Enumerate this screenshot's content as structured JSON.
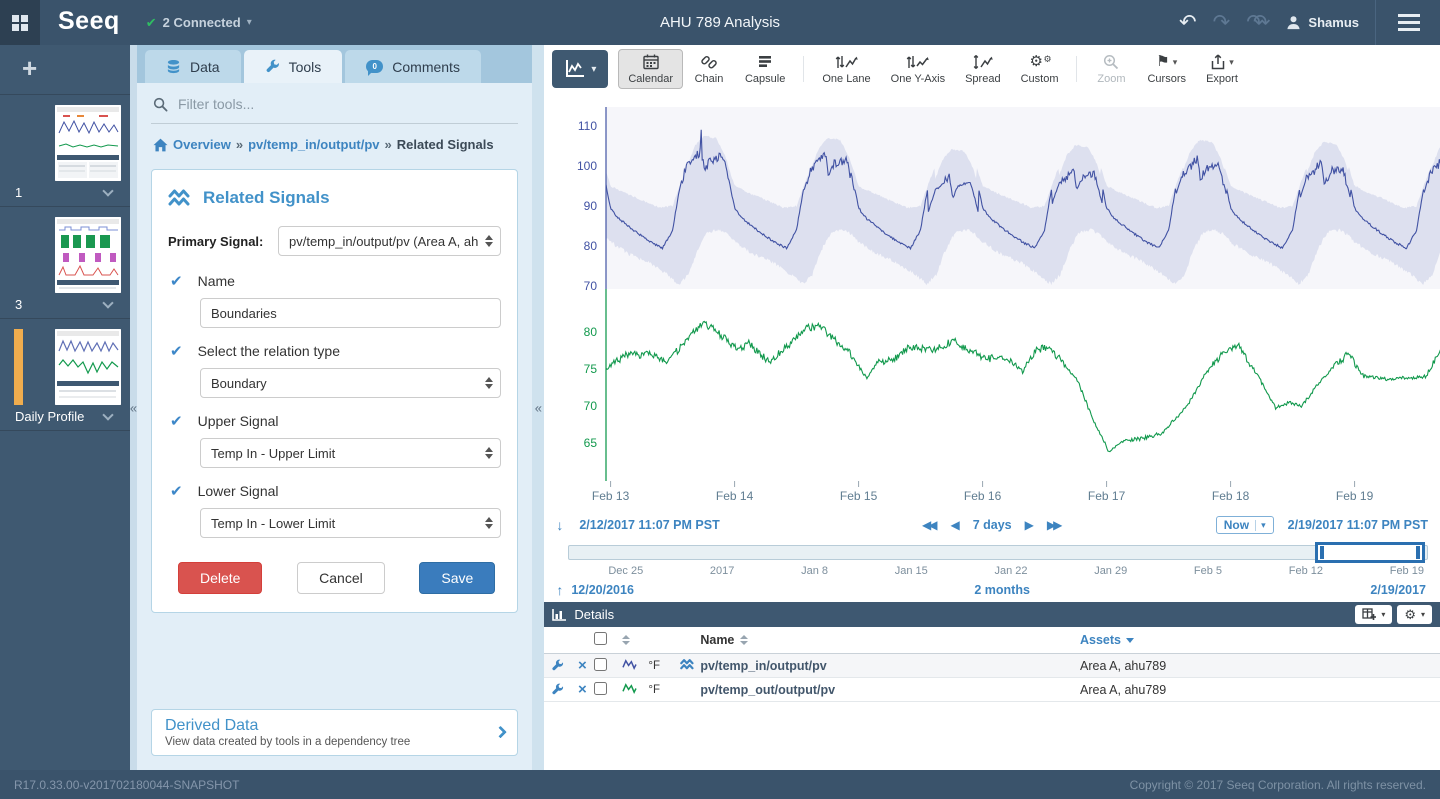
{
  "topbar": {
    "logo": "Seeq",
    "connected": "2 Connected",
    "title": "AHU 789 Analysis",
    "user": "Shamus"
  },
  "worksheets": {
    "items": [
      {
        "label": "1"
      },
      {
        "label": "3"
      },
      {
        "label": "Daily Profile"
      }
    ]
  },
  "panel": {
    "tabs": {
      "data": "Data",
      "tools": "Tools",
      "comments": "Comments",
      "comments_badge": "0"
    },
    "filter_placeholder": "Filter tools...",
    "breadcrumb": {
      "home": "Overview",
      "signal": "pv/temp_in/output/pv",
      "current": "Related Signals",
      "sep": "»"
    },
    "form": {
      "title": "Related Signals",
      "primary_label": "Primary Signal:",
      "primary_value": "pv/temp_in/output/pv (Area A, ah",
      "name_label": "Name",
      "name_value": "Boundaries",
      "relation_label": "Select the relation type",
      "relation_value": "Boundary",
      "upper_label": "Upper Signal",
      "upper_value": "Temp In - Upper Limit",
      "lower_label": "Lower Signal",
      "lower_value": "Temp In - Lower Limit",
      "delete_label": "Delete",
      "cancel_label": "Cancel",
      "save_label": "Save"
    },
    "derived": {
      "title": "Derived Data",
      "subtitle": "View data created by tools in a dependency tree"
    }
  },
  "toolbar": {
    "buttons": [
      {
        "label": "Calendar"
      },
      {
        "label": "Chain"
      },
      {
        "label": "Capsule"
      },
      {
        "label": "One Lane"
      },
      {
        "label": "One Y-Axis"
      },
      {
        "label": "Spread"
      },
      {
        "label": "Custom"
      },
      {
        "label": "Zoom"
      },
      {
        "label": "Cursors"
      },
      {
        "label": "Export"
      }
    ]
  },
  "range": {
    "start": "2/12/2017 11:07 PM PST",
    "duration": "7 days",
    "now": "Now",
    "end": "2/19/2017 11:07 PM PST"
  },
  "scrubber": {
    "ticks": [
      "Dec 25",
      "2017",
      "Jan 8",
      "Jan 15",
      "Jan 22",
      "Jan 29",
      "Feb 5",
      "Feb 12",
      "Feb 19"
    ],
    "start": "12/20/2016",
    "duration": "2 months",
    "end": "2/19/2017"
  },
  "details": {
    "title": "Details",
    "name_col": "Name",
    "assets_col": "Assets",
    "rows": [
      {
        "unit": "°F",
        "name": "pv/temp_in/output/pv",
        "assets": "Area A, ahu789",
        "color": "#4152a3",
        "related": true
      },
      {
        "unit": "°F",
        "name": "pv/temp_out/output/pv",
        "assets": "Area A, ahu789",
        "color": "#12994d",
        "related": false
      }
    ]
  },
  "footer": {
    "version": "R17.0.33.00-v201702180044-SNAPSHOT",
    "copyright": "Copyright © 2017 Seeq Corporation. All rights reserved."
  },
  "icons": {
    "check": "✔",
    "caret_down": "▾",
    "undo": "↶",
    "redo": "↷",
    "redo_all": "↷↷",
    "collapse": "«",
    "down_arrow": "↓",
    "up_arrow": "↑",
    "step_back": "◀◀",
    "back": "◀",
    "fwd": "▶",
    "step_fwd": "▶▶",
    "gear": "⚙",
    "flag": "⚑",
    "remove": "×",
    "plus": "+"
  },
  "colors": {
    "accent": "#4292c9",
    "link": "#3d84c0",
    "temp_in_line": "#4152a3",
    "temp_out_line": "#12994d",
    "band_fill": "#c9cee6",
    "lane1_bg": "#f6f6fa",
    "save_button": "#3a7cbd",
    "delete_button": "#d9534f",
    "active_worksheet_bar": "#f0ad4e"
  },
  "chart_data": {
    "type": "line",
    "x_ticks": [
      "Feb 13",
      "Feb 14",
      "Feb 15",
      "Feb 16",
      "Feb 17",
      "Feb 18",
      "Feb 19"
    ],
    "x_range_label": [
      "2/12/2017 11:07 PM PST",
      "2/19/2017 11:07 PM PST"
    ],
    "grid": false,
    "lanes": [
      {
        "signal": "pv/temp_in/output/pv",
        "unit": "°F",
        "color": "#4152a3",
        "y_ticks": [
          110,
          100,
          90,
          80,
          70
        ],
        "ylim": [
          66,
          115
        ],
        "band": {
          "upper": "Temp In - Upper Limit",
          "lower": "Temp In - Lower Limit",
          "fill": "#c9cee6"
        }
      },
      {
        "signal": "pv/temp_out/output/pv",
        "unit": "°F",
        "color": "#12994d",
        "y_ticks": [
          80,
          75,
          70,
          65
        ],
        "ylim": [
          60,
          84
        ]
      }
    ],
    "temp_in_daily_profile": [
      [
        0,
        89.5
      ],
      [
        0.06,
        87
      ],
      [
        0.18,
        84
      ],
      [
        0.32,
        81
      ],
      [
        0.42,
        79.5
      ],
      [
        0.5,
        84
      ],
      [
        0.56,
        95
      ],
      [
        0.62,
        100.5
      ],
      [
        0.68,
        102
      ],
      [
        0.73,
        104
      ],
      [
        0.76,
        98.5
      ],
      [
        0.8,
        101.5
      ],
      [
        0.9,
        102.5
      ],
      [
        0.95,
        97
      ],
      [
        1,
        89.5
      ]
    ],
    "upper_limit_daily_profile": [
      [
        0,
        95
      ],
      [
        0.1,
        93.5
      ],
      [
        0.25,
        91.5
      ],
      [
        0.4,
        89.5
      ],
      [
        0.5,
        90
      ],
      [
        0.58,
        97
      ],
      [
        0.68,
        105
      ],
      [
        0.75,
        107.5
      ],
      [
        0.85,
        107
      ],
      [
        0.92,
        103
      ],
      [
        1,
        95
      ]
    ],
    "lower_limit_daily_profile": [
      [
        0,
        81
      ],
      [
        0.15,
        78
      ],
      [
        0.3,
        76
      ],
      [
        0.45,
        73
      ],
      [
        0.55,
        70.5
      ],
      [
        0.63,
        73
      ],
      [
        0.7,
        79
      ],
      [
        0.78,
        83.5
      ],
      [
        0.88,
        84
      ],
      [
        0.94,
        83
      ],
      [
        1,
        81
      ]
    ],
    "day_peak_offsets": [
      0,
      0,
      -1,
      -6.5,
      -4.5,
      -2,
      -3,
      -1.5
    ],
    "temp_in_spike": {
      "day": 1,
      "phase": 0.73,
      "amplitude": 5.5
    },
    "temp_out_points": [
      [
        0,
        75
      ],
      [
        0.15,
        76.8
      ],
      [
        0.35,
        77
      ],
      [
        0.47,
        76
      ],
      [
        0.58,
        77.5
      ],
      [
        0.71,
        80
      ],
      [
        0.79,
        81.2
      ],
      [
        0.9,
        80
      ],
      [
        1.07,
        77.5
      ],
      [
        1.15,
        78.5
      ],
      [
        1.31,
        76
      ],
      [
        1.49,
        78.5
      ],
      [
        1.62,
        80.5
      ],
      [
        1.73,
        80.8
      ],
      [
        1.84,
        79
      ],
      [
        1.96,
        77.3
      ],
      [
        2.1,
        73.8
      ],
      [
        2.2,
        76
      ],
      [
        2.32,
        76.3
      ],
      [
        2.45,
        78
      ],
      [
        2.64,
        77.5
      ],
      [
        2.8,
        78.8
      ],
      [
        2.92,
        77.5
      ],
      [
        3.08,
        76.4
      ],
      [
        3.24,
        76.6
      ],
      [
        3.36,
        74.6
      ],
      [
        3.46,
        77.5
      ],
      [
        3.56,
        78
      ],
      [
        3.68,
        76
      ],
      [
        3.8,
        73.5
      ],
      [
        3.92,
        68.5
      ],
      [
        4.06,
        63.7
      ],
      [
        4.16,
        65.3
      ],
      [
        4.32,
        65.6
      ],
      [
        4.48,
        66.3
      ],
      [
        4.68,
        69.8
      ],
      [
        4.84,
        74.5
      ],
      [
        4.99,
        77.5
      ],
      [
        5.1,
        78.2
      ],
      [
        5.26,
        74
      ],
      [
        5.4,
        69.8
      ],
      [
        5.51,
        70.5
      ],
      [
        5.61,
        69.9
      ],
      [
        5.74,
        73
      ],
      [
        5.89,
        75.8
      ],
      [
        5.99,
        77
      ],
      [
        6.11,
        74
      ],
      [
        6.29,
        73.6
      ],
      [
        6.45,
        73.8
      ],
      [
        6.61,
        74
      ],
      [
        6.74,
        77.5
      ],
      [
        6.83,
        79.3
      ],
      [
        6.93,
        77.2
      ],
      [
        7.02,
        76.3
      ]
    ],
    "window_days": 6.997,
    "window_start_day_fraction": 0.963
  }
}
